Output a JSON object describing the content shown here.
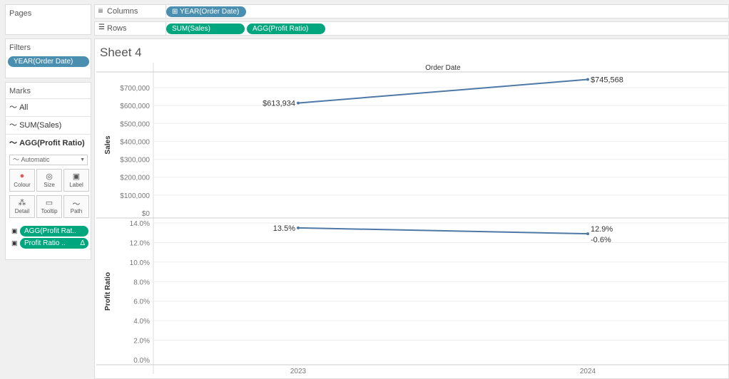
{
  "pages": {
    "title": "Pages"
  },
  "filters": {
    "title": "Filters",
    "pill": "YEAR(Order Date)"
  },
  "marks": {
    "title": "Marks",
    "items": [
      "All",
      "SUM(Sales)",
      "AGG(Profit Ratio)"
    ],
    "type": "Automatic",
    "buttons": [
      "Colour",
      "Size",
      "Label",
      "Detail",
      "Tooltip",
      "Path"
    ],
    "pills": [
      "AGG(Profit Rat..",
      "Profit Ratio .."
    ],
    "delta": "Δ"
  },
  "shelves": {
    "columns_label": "Columns",
    "rows_label": "Rows",
    "columns": [
      "YEAR(Order Date)"
    ],
    "rows": [
      "SUM(Sales)",
      "AGG(Profit Ratio)"
    ]
  },
  "sheet": {
    "title": "Sheet 4"
  },
  "colors": {
    "line": "#4e79a7",
    "pill_blue": "#4a8fb0",
    "pill_green": "#00a67e"
  },
  "chart_data": {
    "type": "line",
    "header": "Order Date",
    "x": [
      "2023",
      "2024"
    ],
    "panels": [
      {
        "ylabel": "Sales",
        "values": [
          613934,
          745568
        ],
        "labels": [
          "$613,934",
          "$745,568"
        ],
        "ylim": [
          0,
          760000
        ],
        "ticks": [
          "$0",
          "$100,000",
          "$200,000",
          "$300,000",
          "$400,000",
          "$500,000",
          "$600,000",
          "$700,000"
        ]
      },
      {
        "ylabel": "Profit Ratio",
        "values": [
          13.5,
          12.9
        ],
        "labels": [
          "13.5%",
          "12.9%"
        ],
        "extra_label": "-0.6%",
        "ylim": [
          0,
          14.5
        ],
        "ticks": [
          "0.0%",
          "2.0%",
          "4.0%",
          "6.0%",
          "8.0%",
          "10.0%",
          "12.0%",
          "14.0%"
        ]
      }
    ]
  }
}
